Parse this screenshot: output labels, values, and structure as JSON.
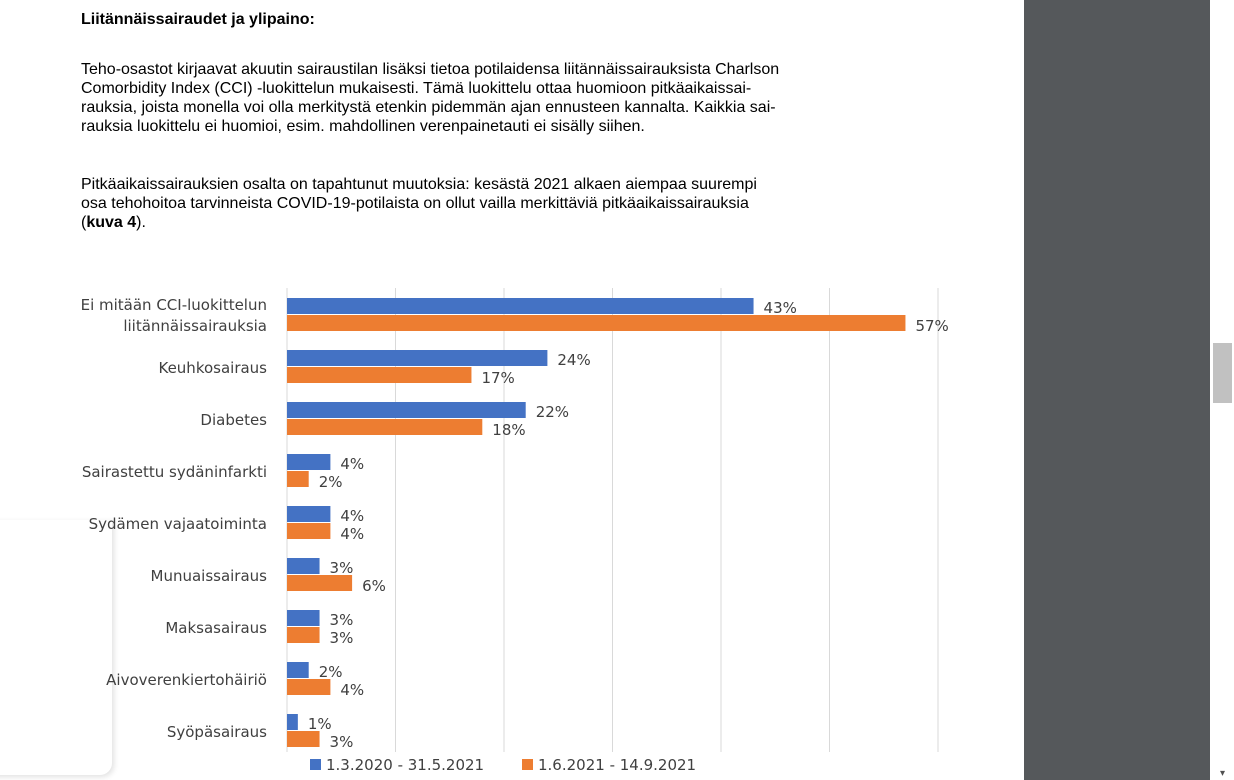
{
  "document": {
    "heading": "Liitännäissairaudet ja ylipaino:",
    "para1_lines": [
      "Teho-osastot kirjaavat akuutin sairaustilan lisäksi tietoa potilaidensa liitännäissairauksista Charlson",
      "Comorbidity Index (CCI) -luokittelun mukaisesti. Tämä luokittelu ottaa huomioon pitkäaikaissai-",
      "rauksia, joista monella voi olla merkitystä etenkin pidemmän ajan ennusteen kannalta. Kaikkia sai-",
      "rauksia luokittelu ei huomioi, esim. mahdollinen verenpainetauti ei sisälly siihen."
    ],
    "para2_lines": [
      "Pitkäaikaissairauksien osalta on tapahtunut muutoksia: kesästä 2021 alkaen aiempaa suurempi",
      "osa tehohoitoa tarvinneista COVID-19-potilaista on ollut vailla merkittäviä pitkäaikaissairauksia"
    ],
    "para2_last_open": "(",
    "para2_last_bold": "kuva 4",
    "para2_last_close": ")."
  },
  "chart_data": {
    "type": "bar",
    "orientation": "horizontal",
    "categories": [
      [
        "Ei mitään CCI-luokittelun",
        "liitännäissairauksia"
      ],
      [
        "Keuhkosairaus"
      ],
      [
        "Diabetes"
      ],
      [
        "Sairastettu sydäninfarkti"
      ],
      [
        "Sydämen vajaatoiminta"
      ],
      [
        "Munuaissairaus"
      ],
      [
        "Maksasairaus"
      ],
      [
        "Aivoverenkiertohäiriö"
      ],
      [
        "Syöpäsairaus"
      ]
    ],
    "series": [
      {
        "name": "1.3.2020 - 31.5.2021",
        "color": "#4472c4",
        "values": [
          43,
          24,
          22,
          4,
          4,
          3,
          3,
          2,
          1
        ]
      },
      {
        "name": "1.6.2021 - 14.9.2021",
        "color": "#ed7d31",
        "values": [
          57,
          17,
          18,
          2,
          4,
          6,
          3,
          4,
          3
        ]
      }
    ],
    "value_suffix": "%",
    "xlim": [
      0,
      60
    ],
    "gridlines": [
      0,
      10,
      20,
      30,
      40,
      50,
      60
    ],
    "grid": true,
    "legend_position": "bottom"
  },
  "colors": {
    "sidebar": "#55585b",
    "scroll_thumb": "#c1c1c1"
  }
}
